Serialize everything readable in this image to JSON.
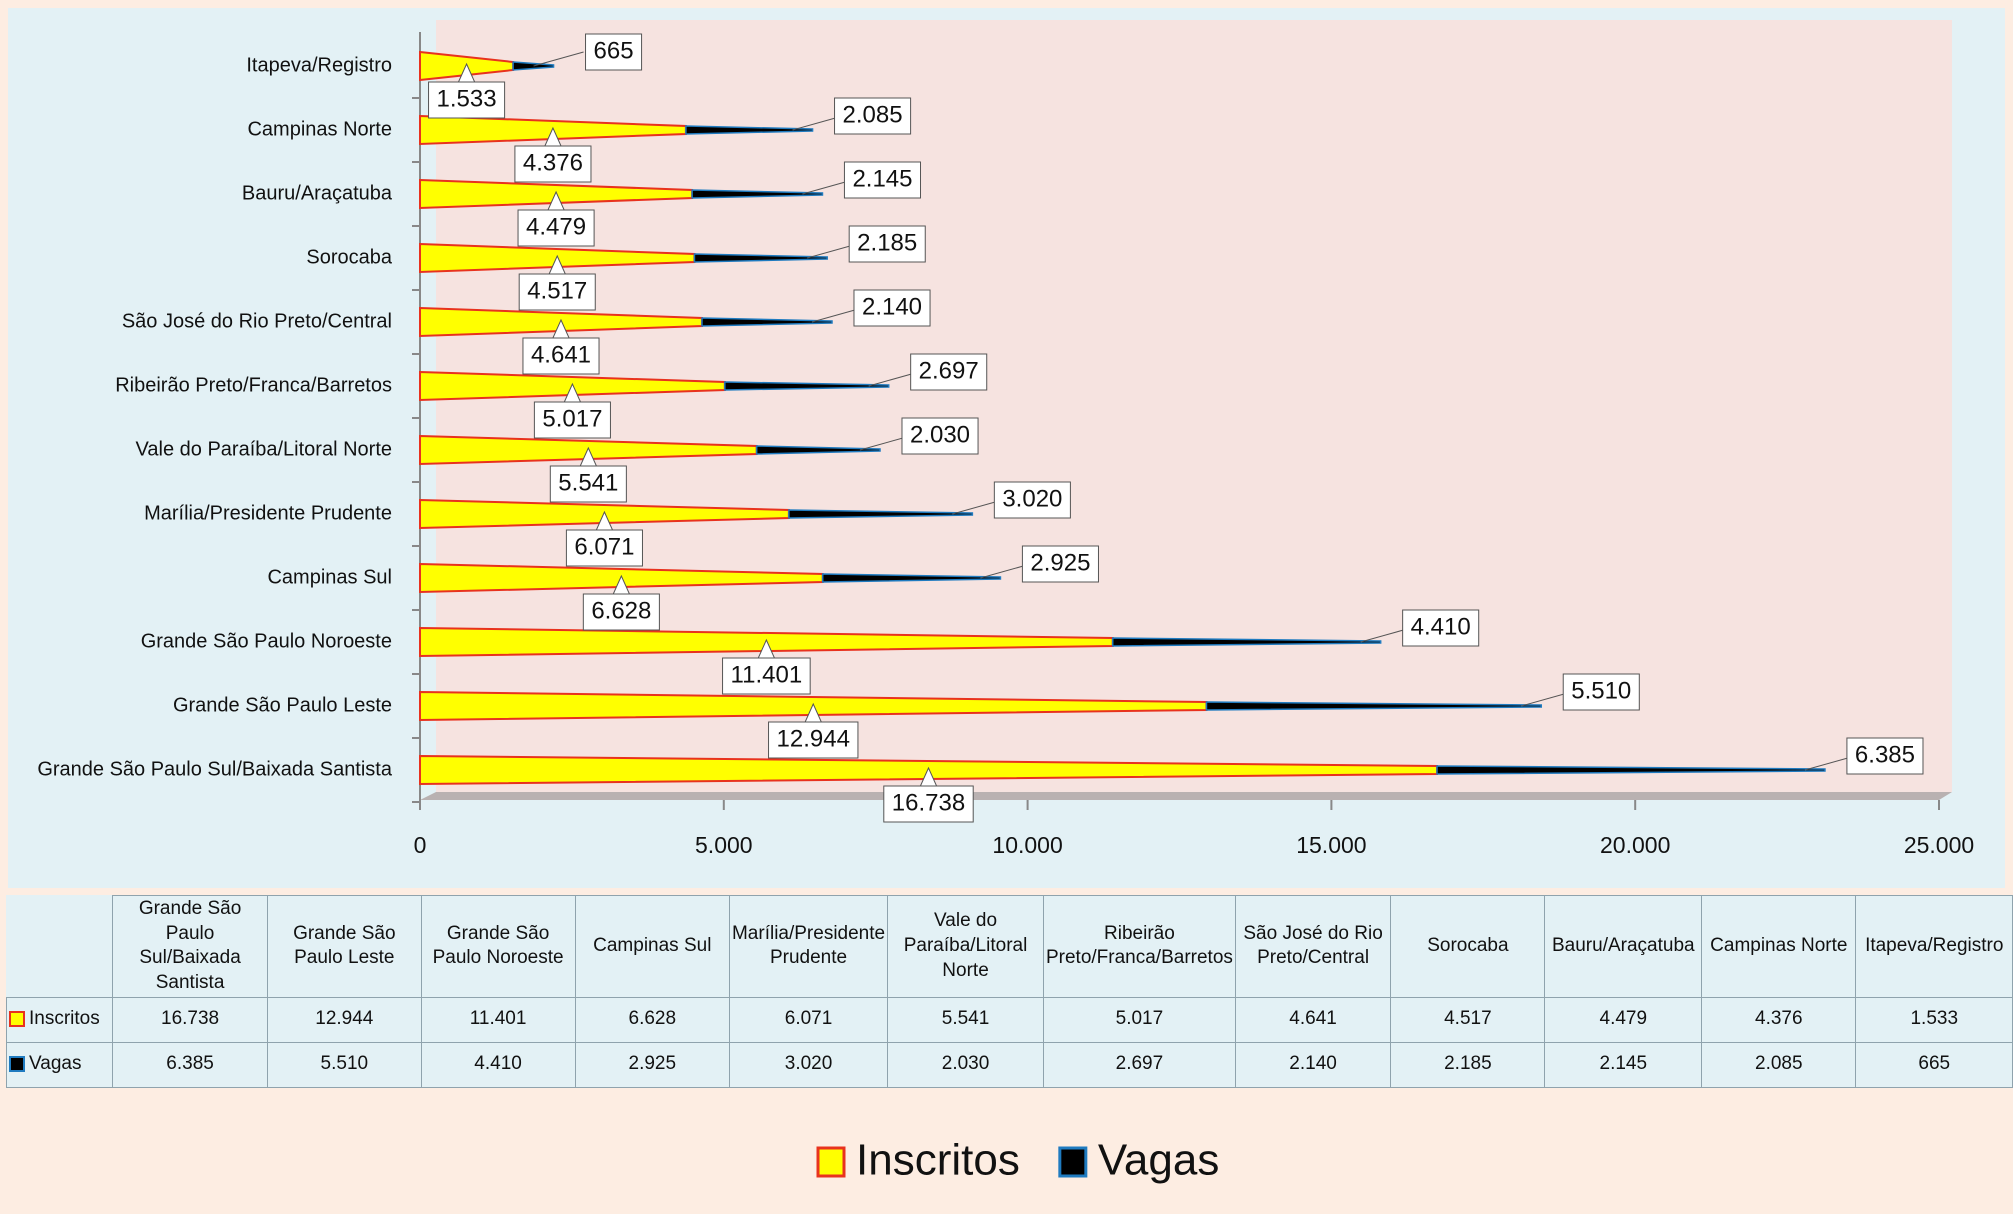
{
  "chart_data": {
    "type": "bar",
    "orientation": "horizontal",
    "stacked": true,
    "categories": [
      "Grande São Paulo Sul/Baixada Santista",
      "Grande São Paulo Leste",
      "Grande São Paulo Noroeste",
      "Campinas Sul",
      "Marília/Presidente Prudente",
      "Vale do Paraíba/Litoral Norte",
      "Ribeirão Preto/Franca/Barretos",
      "São José do Rio Preto/Central",
      "Sorocaba",
      "Bauru/Araçatuba",
      "Campinas Norte",
      "Itapeva/Registro"
    ],
    "series": [
      {
        "name": "Inscritos",
        "color": "#ffff00",
        "values": [
          16738,
          12944,
          11401,
          6628,
          6071,
          5541,
          5017,
          4641,
          4517,
          4479,
          4376,
          1533
        ],
        "value_labels": [
          "16.738",
          "12.944",
          "11.401",
          "6.628",
          "6.071",
          "5.541",
          "5.017",
          "4.641",
          "4.517",
          "4.479",
          "4.376",
          "1.533"
        ]
      },
      {
        "name": "Vagas",
        "color": "#000000",
        "values": [
          6385,
          5510,
          4410,
          2925,
          3020,
          2030,
          2697,
          2140,
          2185,
          2145,
          2085,
          665
        ],
        "value_labels": [
          "6.385",
          "5.510",
          "4.410",
          "2.925",
          "3.020",
          "2.030",
          "2.697",
          "2.140",
          "2.185",
          "2.145",
          "2.085",
          "665"
        ]
      }
    ],
    "xlim": [
      0,
      25000
    ],
    "xticks": [
      0,
      {
        "value": 5000,
        "label": "5.000"
      },
      {
        "value": 10000,
        "label": "10.000"
      },
      {
        "value": 15000,
        "label": "15.000"
      },
      {
        "value": 20000,
        "label": "20.000"
      },
      {
        "value": 25000,
        "label": "25.000"
      }
    ],
    "legend": "bottom",
    "data_table": true
  }
}
